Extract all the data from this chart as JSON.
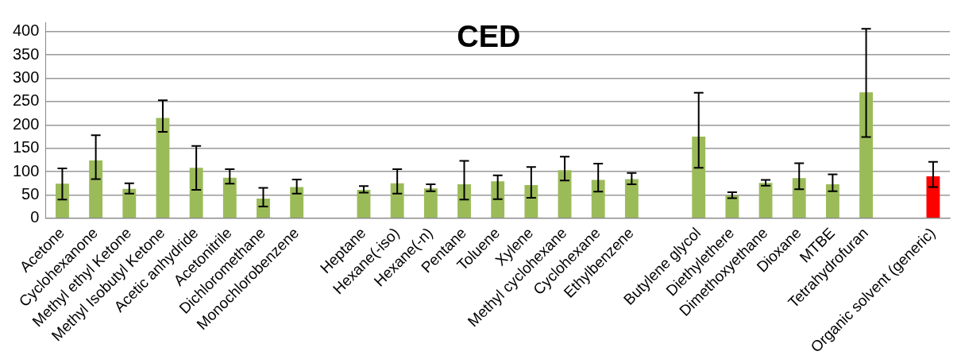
{
  "chart_data": {
    "type": "bar",
    "title": "CED",
    "categories": [
      "Acetone",
      "Cyclohexanone",
      "Methyl ethyl Ketone",
      "Methyl Isobutyl Ketone",
      "Acetic anhydride",
      "Acetonitrile",
      "Dichloromethane",
      "Monochlorobenzene",
      null,
      "Heptane",
      "Hexane(-iso)",
      "Hexane(-n)",
      "Pentane",
      "Toluene",
      "Xylene",
      "Methyl cyclohexane",
      "Cyclohexane",
      "Ethylbenzene",
      null,
      "Butylene glycol",
      "Diethylethere",
      "Dimethoxyethane",
      "Dioxane",
      "MTBE",
      "Tetrahydrofuran",
      null,
      "Organic solvent (generic)"
    ],
    "values": [
      74,
      124,
      63,
      215,
      108,
      87,
      42,
      67,
      null,
      61,
      75,
      64,
      73,
      79,
      71,
      103,
      82,
      84,
      null,
      175,
      49,
      76,
      86,
      73,
      270,
      null,
      90
    ],
    "errors": [
      [
        40,
        107
      ],
      [
        84,
        178
      ],
      [
        53,
        75
      ],
      [
        185,
        253
      ],
      [
        61,
        155
      ],
      [
        74,
        105
      ],
      [
        25,
        65
      ],
      [
        53,
        83
      ],
      null,
      [
        55,
        69
      ],
      [
        53,
        105
      ],
      [
        58,
        73
      ],
      [
        40,
        123
      ],
      [
        41,
        92
      ],
      [
        44,
        110
      ],
      [
        81,
        132
      ],
      [
        57,
        117
      ],
      [
        73,
        97
      ],
      null,
      [
        108,
        269
      ],
      [
        43,
        56
      ],
      [
        70,
        82
      ],
      [
        62,
        118
      ],
      [
        58,
        94
      ],
      [
        174,
        406
      ],
      null,
      [
        67,
        121
      ]
    ],
    "colors": [
      "#9bbb59",
      "#9bbb59",
      "#9bbb59",
      "#9bbb59",
      "#9bbb59",
      "#9bbb59",
      "#9bbb59",
      "#9bbb59",
      "#9bbb59",
      "#9bbb59",
      "#9bbb59",
      "#9bbb59",
      "#9bbb59",
      "#9bbb59",
      "#9bbb59",
      "#9bbb59",
      "#9bbb59",
      "#9bbb59",
      "#9bbb59",
      "#9bbb59",
      "#9bbb59",
      "#9bbb59",
      "#9bbb59",
      "#9bbb59",
      "#9bbb59",
      "#9bbb59",
      "#ff0000"
    ],
    "ylim": [
      0,
      420
    ],
    "yticks": [
      0,
      50,
      100,
      150,
      200,
      250,
      300,
      350,
      400
    ],
    "grid": "y"
  }
}
